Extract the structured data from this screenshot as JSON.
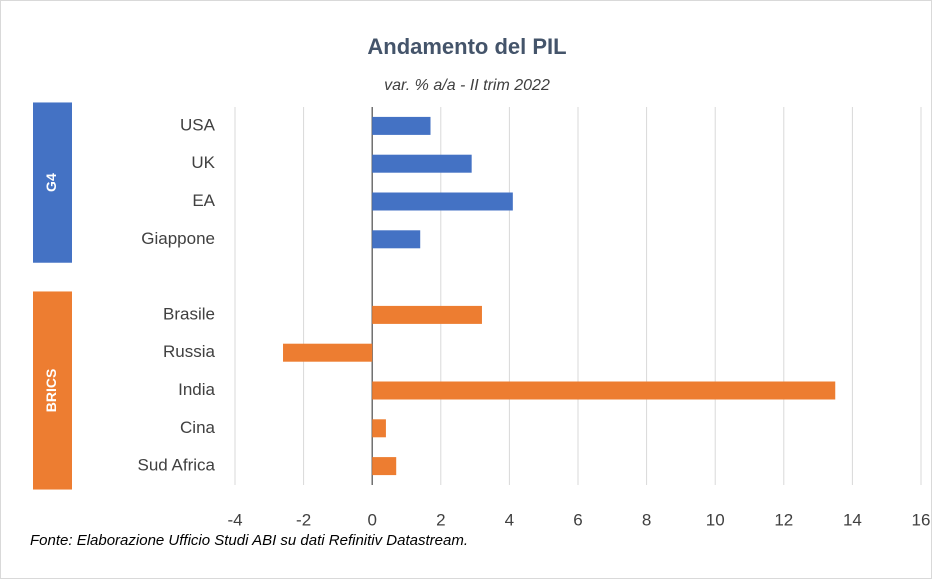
{
  "chart_data": {
    "type": "bar",
    "orientation": "horizontal",
    "title": "Andamento del PIL",
    "subtitle": "var. % a/a - II trim 2022",
    "source": "Fonte: Elaborazione Ufficio Studi ABI su dati Refinitiv Datastream.",
    "categories": [
      "USA",
      "UK",
      "EA",
      "Giappone",
      null,
      "Brasile",
      "Russia",
      "India",
      "Cina",
      "Sud Africa"
    ],
    "values": [
      1.7,
      2.9,
      4.1,
      1.4,
      null,
      3.2,
      -2.6,
      13.5,
      0.4,
      0.7
    ],
    "colors": [
      "#4472c4",
      "#4472c4",
      "#4472c4",
      "#4472c4",
      null,
      "#ed7d31",
      "#ed7d31",
      "#ed7d31",
      "#ed7d31",
      "#ed7d31"
    ],
    "groups": [
      {
        "name": "G4",
        "color": "#4472c4"
      },
      {
        "name": "BRICS",
        "color": "#ed7d31"
      }
    ],
    "xlim": [
      -4,
      16
    ],
    "xticks": [
      -4,
      -2,
      0,
      2,
      4,
      6,
      8,
      10,
      12,
      14,
      16
    ],
    "grid": true
  }
}
